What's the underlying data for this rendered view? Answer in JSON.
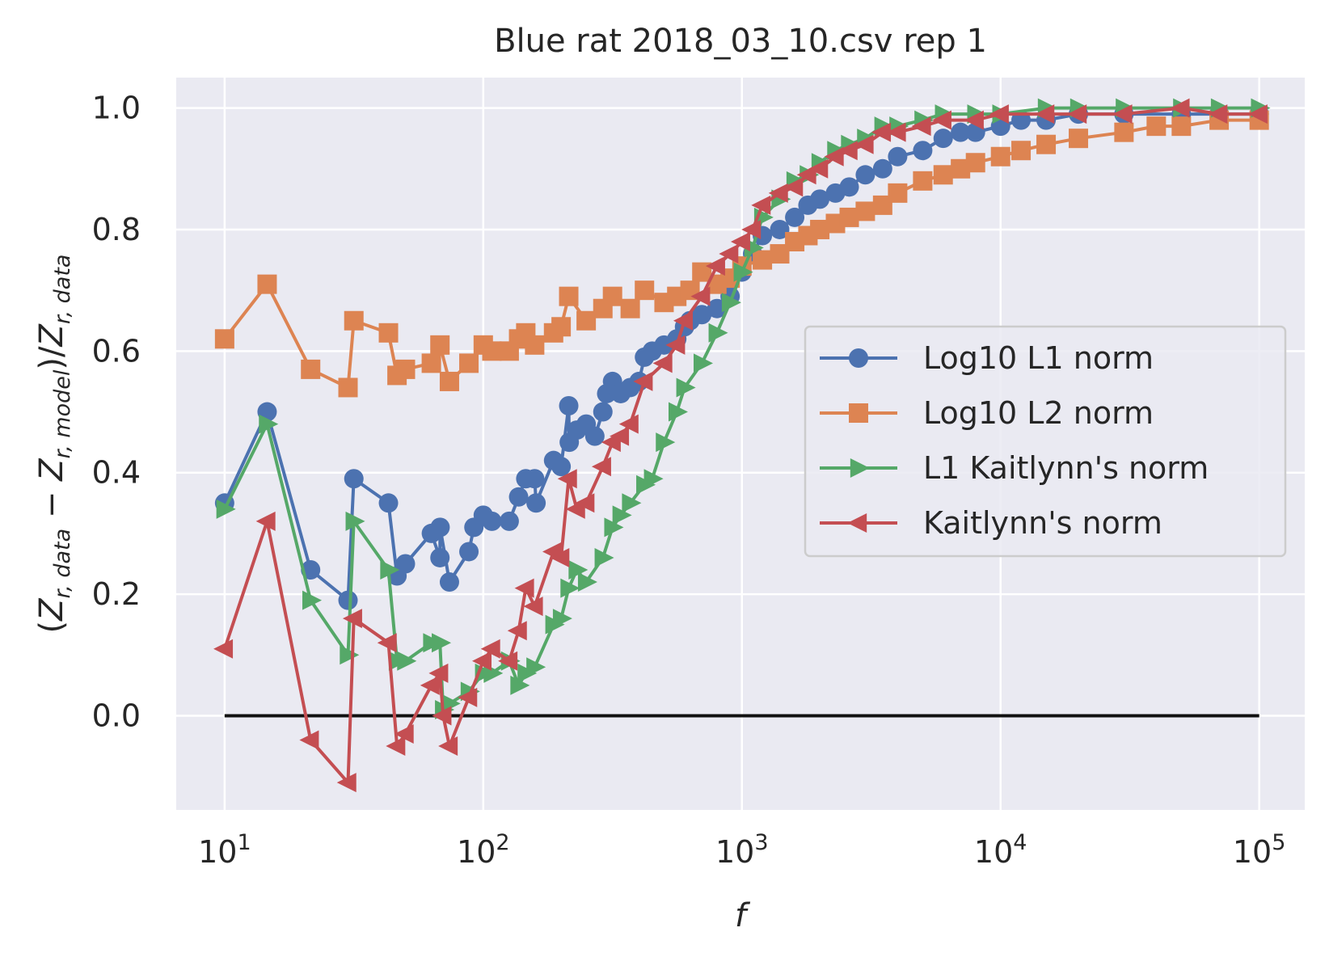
{
  "chart_data": {
    "type": "line",
    "title": "Blue rat 2018_03_10.csv rep 1",
    "xlabel": "f",
    "ylabel": {
      "open": "(",
      "z1": "Z",
      "s1": "r, data",
      "minus": " − ",
      "z2": "Z",
      "s2": "r, model",
      "close": ")/",
      "z3": "Z",
      "s3": "r, data"
    },
    "x_scale": "log",
    "xlim": [
      6.5,
      150000
    ],
    "ylim": [
      -0.155,
      1.05
    ],
    "grid": true,
    "legend_position": "center-right",
    "x_ticks": [
      {
        "value": 10,
        "base": "10",
        "exp": "1"
      },
      {
        "value": 100,
        "base": "10",
        "exp": "2"
      },
      {
        "value": 1000,
        "base": "10",
        "exp": "3"
      },
      {
        "value": 10000,
        "base": "10",
        "exp": "4"
      },
      {
        "value": 100000,
        "base": "10",
        "exp": "5"
      }
    ],
    "y_ticks": [
      {
        "value": 0.0,
        "label": "0.0"
      },
      {
        "value": 0.2,
        "label": "0.2"
      },
      {
        "value": 0.4,
        "label": "0.4"
      },
      {
        "value": 0.6,
        "label": "0.6"
      },
      {
        "value": 0.8,
        "label": "0.8"
      },
      {
        "value": 1.0,
        "label": "1.0"
      }
    ],
    "reference_line": {
      "x": [
        10,
        100000
      ],
      "y": [
        0,
        0
      ],
      "color": "#111111"
    },
    "series": [
      {
        "name": "Log10 L1 norm",
        "color": "#4c72b0",
        "marker": "circle",
        "points": [
          [
            10,
            0.35
          ],
          [
            14.6,
            0.5
          ],
          [
            21.5,
            0.24
          ],
          [
            30,
            0.19
          ],
          [
            31.6,
            0.39
          ],
          [
            43,
            0.35
          ],
          [
            46.4,
            0.23
          ],
          [
            50,
            0.25
          ],
          [
            63,
            0.3
          ],
          [
            68,
            0.26
          ],
          [
            68.1,
            0.31
          ],
          [
            74,
            0.22
          ],
          [
            88,
            0.27
          ],
          [
            92,
            0.31
          ],
          [
            100,
            0.33
          ],
          [
            108,
            0.32
          ],
          [
            126,
            0.32
          ],
          [
            137,
            0.36
          ],
          [
            146,
            0.39
          ],
          [
            158,
            0.39
          ],
          [
            160,
            0.35
          ],
          [
            187,
            0.42
          ],
          [
            200,
            0.41
          ],
          [
            214,
            0.51
          ],
          [
            215,
            0.45
          ],
          [
            230,
            0.47
          ],
          [
            250,
            0.48
          ],
          [
            270,
            0.46
          ],
          [
            290,
            0.5
          ],
          [
            300,
            0.53
          ],
          [
            316,
            0.55
          ],
          [
            340,
            0.53
          ],
          [
            370,
            0.54
          ],
          [
            400,
            0.55
          ],
          [
            420,
            0.59
          ],
          [
            450,
            0.6
          ],
          [
            500,
            0.61
          ],
          [
            560,
            0.62
          ],
          [
            600,
            0.64
          ],
          [
            630,
            0.65
          ],
          [
            700,
            0.66
          ],
          [
            800,
            0.67
          ],
          [
            900,
            0.69
          ],
          [
            1000,
            0.73
          ],
          [
            1100,
            0.76
          ],
          [
            1200,
            0.79
          ],
          [
            1400,
            0.8
          ],
          [
            1600,
            0.82
          ],
          [
            1800,
            0.84
          ],
          [
            2000,
            0.85
          ],
          [
            2300,
            0.86
          ],
          [
            2600,
            0.87
          ],
          [
            3000,
            0.89
          ],
          [
            3500,
            0.9
          ],
          [
            4000,
            0.92
          ],
          [
            5000,
            0.93
          ],
          [
            6000,
            0.95
          ],
          [
            7000,
            0.96
          ],
          [
            8000,
            0.96
          ],
          [
            10000,
            0.97
          ],
          [
            12000,
            0.98
          ],
          [
            15000,
            0.98
          ],
          [
            20000,
            0.99
          ],
          [
            30000,
            0.99
          ],
          [
            50000,
            0.99
          ],
          [
            70000,
            0.99
          ],
          [
            100000,
            0.99
          ]
        ]
      },
      {
        "name": "Log10 L2 norm",
        "color": "#dd8452",
        "marker": "square",
        "points": [
          [
            10,
            0.62
          ],
          [
            14.6,
            0.71
          ],
          [
            21.5,
            0.57
          ],
          [
            30,
            0.54
          ],
          [
            31.6,
            0.65
          ],
          [
            43,
            0.63
          ],
          [
            46.4,
            0.56
          ],
          [
            50,
            0.57
          ],
          [
            63,
            0.58
          ],
          [
            68,
            0.61
          ],
          [
            74,
            0.55
          ],
          [
            88,
            0.58
          ],
          [
            100,
            0.61
          ],
          [
            108,
            0.6
          ],
          [
            126,
            0.6
          ],
          [
            137,
            0.62
          ],
          [
            146,
            0.63
          ],
          [
            158,
            0.61
          ],
          [
            187,
            0.63
          ],
          [
            200,
            0.64
          ],
          [
            214,
            0.69
          ],
          [
            250,
            0.65
          ],
          [
            290,
            0.67
          ],
          [
            316,
            0.69
          ],
          [
            370,
            0.67
          ],
          [
            420,
            0.7
          ],
          [
            500,
            0.68
          ],
          [
            560,
            0.69
          ],
          [
            630,
            0.7
          ],
          [
            700,
            0.73
          ],
          [
            800,
            0.71
          ],
          [
            900,
            0.72
          ],
          [
            1000,
            0.74
          ],
          [
            1200,
            0.75
          ],
          [
            1400,
            0.76
          ],
          [
            1600,
            0.78
          ],
          [
            1800,
            0.79
          ],
          [
            2000,
            0.8
          ],
          [
            2300,
            0.81
          ],
          [
            2600,
            0.82
          ],
          [
            3000,
            0.83
          ],
          [
            3500,
            0.84
          ],
          [
            4000,
            0.86
          ],
          [
            5000,
            0.88
          ],
          [
            6000,
            0.89
          ],
          [
            7000,
            0.9
          ],
          [
            8000,
            0.91
          ],
          [
            10000,
            0.92
          ],
          [
            12000,
            0.93
          ],
          [
            15000,
            0.94
          ],
          [
            20000,
            0.95
          ],
          [
            30000,
            0.96
          ],
          [
            40000,
            0.97
          ],
          [
            50000,
            0.97
          ],
          [
            70000,
            0.98
          ],
          [
            100000,
            0.98
          ]
        ]
      },
      {
        "name": "L1 Kaitlynn's norm",
        "color": "#55a868",
        "marker": "triangle-right",
        "points": [
          [
            10,
            0.34
          ],
          [
            14.6,
            0.48
          ],
          [
            21.5,
            0.19
          ],
          [
            30,
            0.1
          ],
          [
            31.6,
            0.32
          ],
          [
            43,
            0.24
          ],
          [
            46.4,
            0.09
          ],
          [
            50,
            0.09
          ],
          [
            63,
            0.12
          ],
          [
            68,
            0.12
          ],
          [
            70,
            0.01
          ],
          [
            74,
            0.02
          ],
          [
            88,
            0.04
          ],
          [
            100,
            0.07
          ],
          [
            108,
            0.07
          ],
          [
            126,
            0.09
          ],
          [
            137,
            0.05
          ],
          [
            146,
            0.07
          ],
          [
            158,
            0.08
          ],
          [
            187,
            0.15
          ],
          [
            200,
            0.16
          ],
          [
            214,
            0.21
          ],
          [
            230,
            0.24
          ],
          [
            250,
            0.22
          ],
          [
            290,
            0.26
          ],
          [
            316,
            0.31
          ],
          [
            340,
            0.33
          ],
          [
            370,
            0.35
          ],
          [
            420,
            0.38
          ],
          [
            450,
            0.39
          ],
          [
            500,
            0.45
          ],
          [
            560,
            0.5
          ],
          [
            600,
            0.54
          ],
          [
            700,
            0.58
          ],
          [
            800,
            0.63
          ],
          [
            900,
            0.68
          ],
          [
            1000,
            0.73
          ],
          [
            1100,
            0.77
          ],
          [
            1200,
            0.82
          ],
          [
            1400,
            0.85
          ],
          [
            1600,
            0.88
          ],
          [
            1800,
            0.89
          ],
          [
            2000,
            0.91
          ],
          [
            2300,
            0.93
          ],
          [
            2600,
            0.94
          ],
          [
            3000,
            0.95
          ],
          [
            3500,
            0.97
          ],
          [
            4000,
            0.97
          ],
          [
            5000,
            0.98
          ],
          [
            6000,
            0.99
          ],
          [
            8000,
            0.99
          ],
          [
            10000,
            0.99
          ],
          [
            15000,
            1.0
          ],
          [
            20000,
            1.0
          ],
          [
            30000,
            1.0
          ],
          [
            50000,
            1.0
          ],
          [
            70000,
            1.0
          ],
          [
            100000,
            1.0
          ]
        ]
      },
      {
        "name": "Kaitlynn's norm",
        "color": "#c44e52",
        "marker": "triangle-left",
        "points": [
          [
            10,
            0.11
          ],
          [
            14.6,
            0.32
          ],
          [
            21.5,
            -0.04
          ],
          [
            30,
            -0.11
          ],
          [
            31.6,
            0.16
          ],
          [
            43,
            0.12
          ],
          [
            46.4,
            -0.05
          ],
          [
            50,
            -0.03
          ],
          [
            63,
            0.05
          ],
          [
            68,
            0.07
          ],
          [
            70,
            0.0
          ],
          [
            74,
            -0.05
          ],
          [
            88,
            0.03
          ],
          [
            100,
            0.09
          ],
          [
            108,
            0.11
          ],
          [
            126,
            0.09
          ],
          [
            137,
            0.14
          ],
          [
            146,
            0.21
          ],
          [
            158,
            0.18
          ],
          [
            187,
            0.27
          ],
          [
            200,
            0.26
          ],
          [
            214,
            0.39
          ],
          [
            230,
            0.34
          ],
          [
            250,
            0.35
          ],
          [
            290,
            0.41
          ],
          [
            316,
            0.45
          ],
          [
            340,
            0.46
          ],
          [
            370,
            0.48
          ],
          [
            420,
            0.55
          ],
          [
            500,
            0.58
          ],
          [
            560,
            0.61
          ],
          [
            600,
            0.65
          ],
          [
            700,
            0.69
          ],
          [
            800,
            0.74
          ],
          [
            900,
            0.76
          ],
          [
            1000,
            0.78
          ],
          [
            1100,
            0.8
          ],
          [
            1200,
            0.84
          ],
          [
            1400,
            0.86
          ],
          [
            1600,
            0.87
          ],
          [
            1800,
            0.89
          ],
          [
            2000,
            0.9
          ],
          [
            2300,
            0.92
          ],
          [
            2600,
            0.93
          ],
          [
            3000,
            0.94
          ],
          [
            3500,
            0.96
          ],
          [
            4000,
            0.96
          ],
          [
            5000,
            0.97
          ],
          [
            6000,
            0.98
          ],
          [
            8000,
            0.98
          ],
          [
            10000,
            0.99
          ],
          [
            15000,
            0.99
          ],
          [
            20000,
            0.99
          ],
          [
            30000,
            0.99
          ],
          [
            50000,
            1.0
          ],
          [
            70000,
            0.99
          ],
          [
            100000,
            0.99
          ]
        ]
      }
    ]
  }
}
